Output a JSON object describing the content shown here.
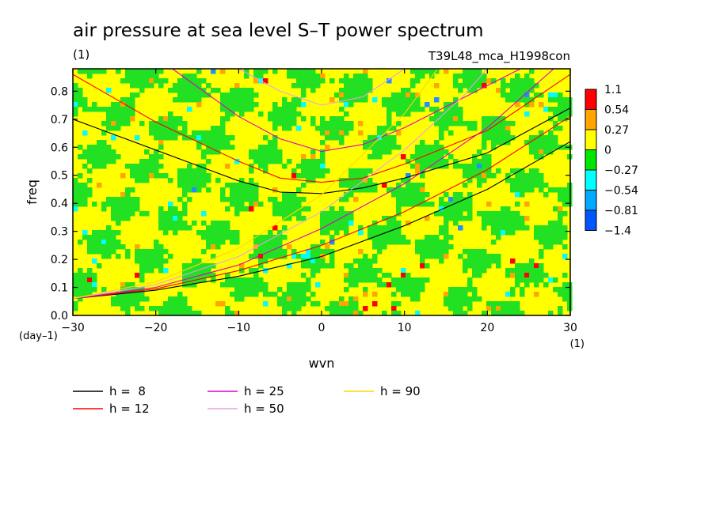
{
  "chart_data": {
    "type": "heatmap",
    "title": "air pressure at sea level S–T power spectrum",
    "units_label": "(1)",
    "run_label": "T39L48_mca_H1998con",
    "xlabel": "wvn",
    "ylabel": "freq",
    "x_unit": "(1)",
    "y_unit": "(day–1)",
    "xlim": [
      -30,
      30
    ],
    "ylim": [
      0,
      0.88
    ],
    "x_ticks": [
      -30,
      -20,
      -10,
      0,
      10,
      20,
      30
    ],
    "x_tick_labels": [
      "−30",
      "−20",
      "−10",
      "0",
      "10",
      "20",
      "30"
    ],
    "y_ticks": [
      0.0,
      0.1,
      0.2,
      0.3,
      0.4,
      0.5,
      0.6,
      0.7,
      0.8
    ],
    "y_tick_labels": [
      "0.0",
      "0.1",
      "0.2",
      "0.3",
      "0.4",
      "0.5",
      "0.6",
      "0.7",
      "0.8"
    ],
    "colorbar": {
      "labels": [
        "1.1",
        "0.54",
        "0.27",
        "0",
        "−0.27",
        "−0.54",
        "−0.81",
        "−1.4"
      ],
      "colors": [
        "#ff0000",
        "#ffa500",
        "#ffff00",
        "#00e600",
        "#00ffff",
        "#00aaff",
        "#0055ff"
      ]
    },
    "background_colors": {
      "yellow": "#ffff00",
      "green": "#22e022",
      "orange": "#ffa500",
      "cyan": "#00ffff",
      "blue": "#1e90ff",
      "red": "#ff0000"
    },
    "legend": [
      {
        "label": "h =  8",
        "color": "#000000"
      },
      {
        "label": "h = 12",
        "color": "#ff0000"
      },
      {
        "label": "h = 25",
        "color": "#e000c0"
      },
      {
        "label": "h = 50",
        "color": "#e8a0e8"
      },
      {
        "label": "h = 90",
        "color": "#ffd700"
      }
    ],
    "dispersion_curves": {
      "black": [
        {
          "name": "kelvin_like",
          "points": [
            [
              -30,
              0.06
            ],
            [
              -20,
              0.09
            ],
            [
              -10,
              0.14
            ],
            [
              0,
              0.21
            ],
            [
              10,
              0.32
            ],
            [
              20,
              0.45
            ],
            [
              30,
              0.62
            ]
          ]
        },
        {
          "name": "bowl_low",
          "points": [
            [
              -30,
              0.7
            ],
            [
              -20,
              0.59
            ],
            [
              -10,
              0.48
            ],
            [
              -5,
              0.44
            ],
            [
              0,
              0.435
            ],
            [
              5,
              0.455
            ],
            [
              10,
              0.49
            ],
            [
              20,
              0.58
            ],
            [
              30,
              0.74
            ]
          ]
        }
      ],
      "red": [
        {
          "name": "kelvin_like",
          "points": [
            [
              -30,
              0.06
            ],
            [
              -20,
              0.095
            ],
            [
              -10,
              0.16
            ],
            [
              0,
              0.25
            ],
            [
              10,
              0.37
            ],
            [
              20,
              0.52
            ],
            [
              30,
              0.71
            ]
          ]
        },
        {
          "name": "bowl_mid",
          "points": [
            [
              -30,
              0.86
            ],
            [
              -20,
              0.69
            ],
            [
              -10,
              0.55
            ],
            [
              -5,
              0.49
            ],
            [
              0,
              0.475
            ],
            [
              5,
              0.49
            ],
            [
              10,
              0.54
            ],
            [
              20,
              0.66
            ],
            [
              30,
              0.86
            ]
          ]
        }
      ],
      "magenta": [
        {
          "name": "kelvin_like",
          "points": [
            [
              -30,
              0.06
            ],
            [
              -20,
              0.1
            ],
            [
              -10,
              0.18
            ],
            [
              0,
              0.31
            ],
            [
              10,
              0.47
            ],
            [
              20,
              0.67
            ],
            [
              28,
              0.88
            ]
          ]
        },
        {
          "name": "bowl_high",
          "points": [
            [
              -18,
              0.88
            ],
            [
              -10,
              0.71
            ],
            [
              -5,
              0.63
            ],
            [
              0,
              0.585
            ],
            [
              5,
              0.61
            ],
            [
              10,
              0.67
            ],
            [
              20,
              0.82
            ],
            [
              24,
              0.88
            ]
          ]
        }
      ],
      "pink": [
        {
          "name": "kelvin_like",
          "points": [
            [
              -30,
              0.06
            ],
            [
              -20,
              0.11
            ],
            [
              -10,
              0.21
            ],
            [
              0,
              0.37
            ],
            [
              10,
              0.59
            ],
            [
              17,
              0.78
            ],
            [
              20,
              0.88
            ]
          ]
        },
        {
          "name": "bowl_top",
          "points": [
            [
              -10,
              0.88
            ],
            [
              -5,
              0.8
            ],
            [
              0,
              0.75
            ],
            [
              5,
              0.78
            ],
            [
              10,
              0.88
            ]
          ]
        }
      ],
      "gold": [
        {
          "name": "kelvin_like",
          "points": [
            [
              -30,
              0.06
            ],
            [
              -20,
              0.12
            ],
            [
              -10,
              0.24
            ],
            [
              0,
              0.43
            ],
            [
              10,
              0.72
            ],
            [
              14,
              0.88
            ]
          ]
        }
      ]
    },
    "grid": false
  }
}
